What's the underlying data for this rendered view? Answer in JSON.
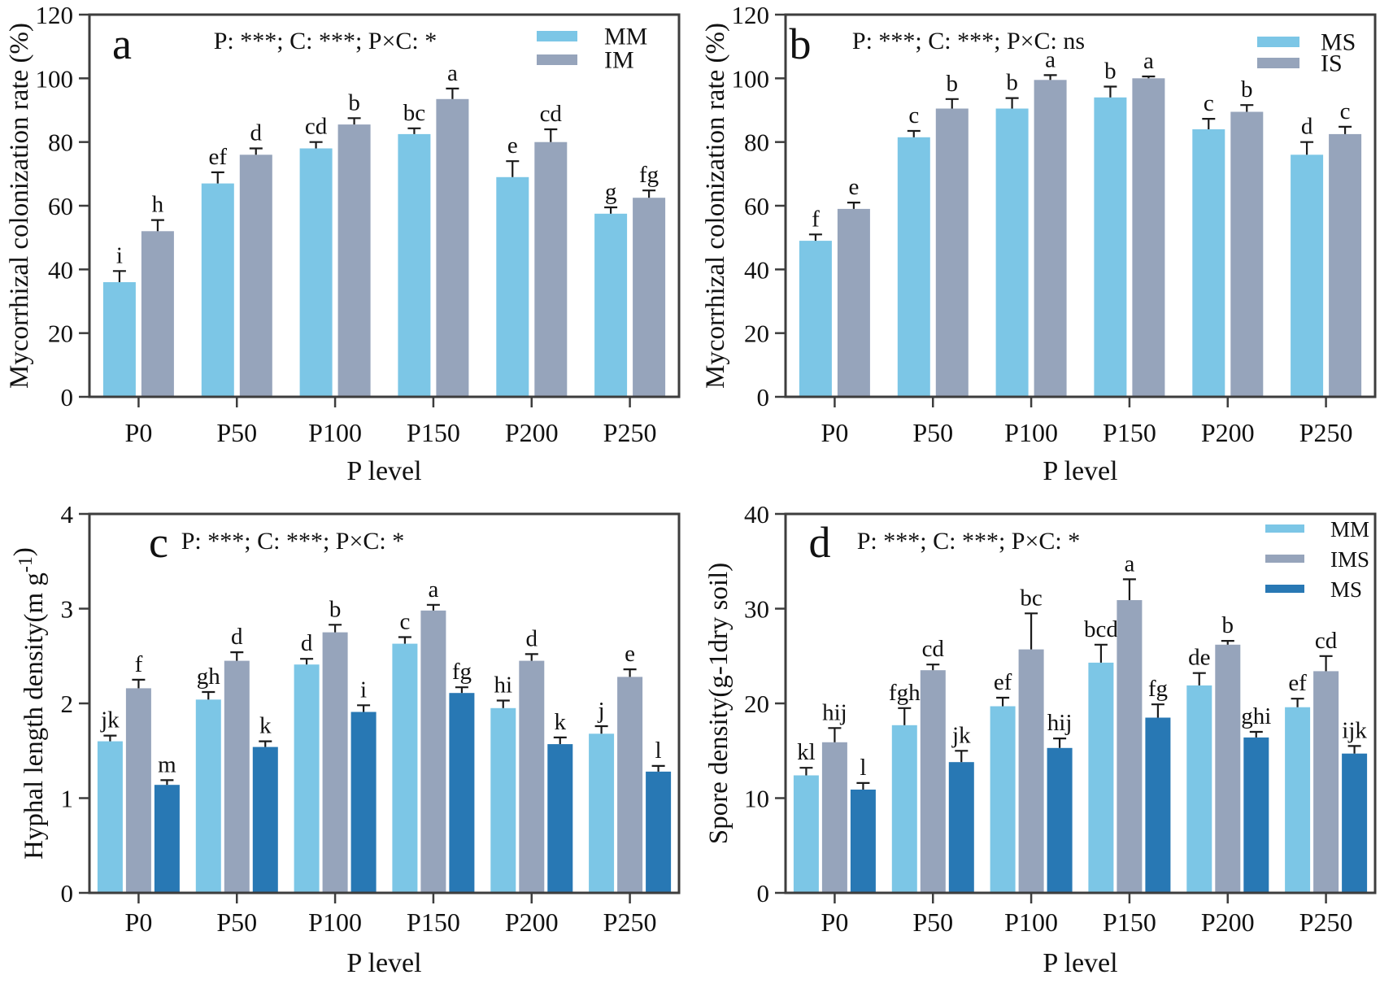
{
  "palette": {
    "light_blue": "#7CC6E6",
    "slate_blue": "#96A4BB",
    "deep_blue": "#2878B4",
    "axis": "#3d3d3d",
    "error_bar": "#1a1a1a",
    "text": "#111111",
    "background": "#ffffff"
  },
  "chart_data": [
    {
      "id": "a",
      "type": "bar",
      "panel_label": "a",
      "stats_text": "P: ***;  C: ***; P×C: *",
      "xlabel": "P level",
      "ylabel": "Mycorrhizal colonization rate (%)",
      "ylim": [
        0,
        120
      ],
      "yticks": [
        0,
        20,
        40,
        60,
        80,
        100,
        120
      ],
      "categories": [
        "P0",
        "P50",
        "P100",
        "P150",
        "P200",
        "P250"
      ],
      "grid": false,
      "legend": {
        "visible": true,
        "position": "top-right",
        "entries": [
          "MM",
          "IM"
        ]
      },
      "series": [
        {
          "name": "MM",
          "color": "#7CC6E6",
          "values": [
            36,
            67,
            78,
            82.5,
            69,
            57.5
          ],
          "errors": [
            3.5,
            3.5,
            2,
            1.8,
            5,
            2
          ],
          "sig_letters": [
            "i",
            "ef",
            "cd",
            "bc",
            "e",
            "g"
          ]
        },
        {
          "name": "IM",
          "color": "#96A4BB",
          "values": [
            52,
            76,
            85.5,
            93.5,
            80,
            62.5
          ],
          "errors": [
            3.5,
            2,
            2,
            3.3,
            4,
            2.3
          ],
          "sig_letters": [
            "h",
            "d",
            "b",
            "a",
            "cd",
            "fg"
          ]
        }
      ]
    },
    {
      "id": "b",
      "type": "bar",
      "panel_label": "b",
      "stats_text": "P: ***;  C: ***; P×C: ns",
      "xlabel": "P level",
      "ylabel": "Mycorrhizal colonization rate (%)",
      "ylim": [
        0,
        120
      ],
      "yticks": [
        0,
        20,
        40,
        60,
        80,
        100,
        120
      ],
      "categories": [
        "P0",
        "P50",
        "P100",
        "P150",
        "P200",
        "P250"
      ],
      "grid": false,
      "legend": {
        "visible": true,
        "position": "top-right",
        "entries": [
          "MS",
          "IS"
        ]
      },
      "series": [
        {
          "name": "MS",
          "color": "#7CC6E6",
          "values": [
            49,
            81.5,
            90.5,
            94,
            84,
            76
          ],
          "errors": [
            2,
            2,
            3.3,
            3.4,
            3.3,
            4
          ],
          "sig_letters": [
            "f",
            "c",
            "b",
            "b",
            "c",
            "d"
          ]
        },
        {
          "name": "IS",
          "color": "#96A4BB",
          "values": [
            59,
            90.5,
            99.5,
            100,
            89.5,
            82.5
          ],
          "errors": [
            2,
            3,
            1.5,
            0.6,
            2.1,
            2.3
          ],
          "sig_letters": [
            "e",
            "b",
            "a",
            "a",
            "b",
            "c"
          ]
        }
      ]
    },
    {
      "id": "c",
      "type": "bar",
      "panel_label": "c",
      "stats_text": "P: ***;  C: ***; P×C: *",
      "xlabel": "P level",
      "ylabel": "Hyphal length density(m g⁻¹)",
      "ylabel_parts": [
        {
          "text": "Hyphal length density(m g",
          "sup": false
        },
        {
          "text": "-1",
          "sup": true
        },
        {
          "text": ")",
          "sup": false
        }
      ],
      "ylim": [
        0,
        4
      ],
      "yticks": [
        0,
        1,
        2,
        3,
        4
      ],
      "categories": [
        "P0",
        "P50",
        "P100",
        "P150",
        "P200",
        "P250"
      ],
      "grid": false,
      "legend": {
        "visible": false,
        "position": null,
        "entries": []
      },
      "series": [
        {
          "name": "MM",
          "color": "#7CC6E6",
          "values": [
            1.6,
            2.04,
            2.41,
            2.63,
            1.95,
            1.68
          ],
          "errors": [
            0.06,
            0.08,
            0.06,
            0.07,
            0.08,
            0.08
          ],
          "sig_letters": [
            "jk",
            "gh",
            "d",
            "c",
            "hi",
            "j"
          ]
        },
        {
          "name": "IMS",
          "color": "#96A4BB",
          "values": [
            2.16,
            2.45,
            2.75,
            2.98,
            2.45,
            2.28
          ],
          "errors": [
            0.09,
            0.09,
            0.08,
            0.06,
            0.07,
            0.08
          ],
          "sig_letters": [
            "f",
            "d",
            "b",
            "a",
            "d",
            "e"
          ]
        },
        {
          "name": "MS",
          "color": "#2878B4",
          "values": [
            1.14,
            1.54,
            1.91,
            2.11,
            1.57,
            1.28
          ],
          "errors": [
            0.05,
            0.06,
            0.07,
            0.06,
            0.07,
            0.06
          ],
          "sig_letters": [
            "m",
            "k",
            "i",
            "fg",
            "k",
            "l"
          ]
        }
      ]
    },
    {
      "id": "d",
      "type": "bar",
      "panel_label": "d",
      "stats_text": "P: ***;  C: ***; P×C: *",
      "xlabel": "P level",
      "ylabel": "Spore density(g-1dry soil)",
      "ylim": [
        0,
        40
      ],
      "yticks": [
        0,
        10,
        20,
        30,
        40
      ],
      "categories": [
        "P0",
        "P50",
        "P100",
        "P150",
        "P200",
        "P250"
      ],
      "grid": false,
      "legend": {
        "visible": true,
        "position": "top-right",
        "entries": [
          "MM",
          "IMS",
          "MS"
        ]
      },
      "series": [
        {
          "name": "MM",
          "color": "#7CC6E6",
          "values": [
            12.4,
            17.7,
            19.7,
            24.3,
            21.9,
            19.6
          ],
          "errors": [
            0.8,
            1.8,
            0.9,
            1.9,
            1.3,
            0.9
          ],
          "sig_letters": [
            "kl",
            "fgh",
            "ef",
            "bcd",
            "de",
            "ef"
          ]
        },
        {
          "name": "IMS",
          "color": "#96A4BB",
          "values": [
            15.9,
            23.5,
            25.7,
            30.9,
            26.2,
            23.4
          ],
          "errors": [
            1.5,
            0.6,
            3.8,
            2.2,
            0.4,
            1.6
          ],
          "sig_letters": [
            "hij",
            "cd",
            "bc",
            "a",
            "b",
            "cd"
          ]
        },
        {
          "name": "MS",
          "color": "#2878B4",
          "values": [
            10.9,
            13.8,
            15.3,
            18.5,
            16.4,
            14.7
          ],
          "errors": [
            0.7,
            1.2,
            1.0,
            1.4,
            0.6,
            0.8
          ],
          "sig_letters": [
            "l",
            "jk",
            "hij",
            "fg",
            "ghi",
            "ijk"
          ]
        }
      ]
    }
  ]
}
